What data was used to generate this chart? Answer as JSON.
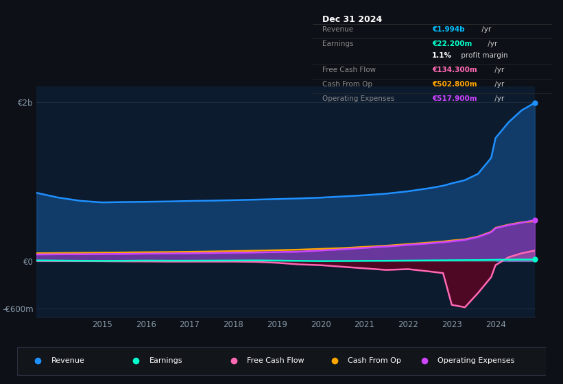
{
  "bg_color": "#0d1117",
  "plot_bg_color": "#0d1b2e",
  "title": "Dec 31 2024",
  "info_box": {
    "Revenue": {
      "label": "Revenue",
      "value": "€1.994b",
      "suffix": " /yr",
      "color": "#00bfff"
    },
    "Earnings": {
      "label": "Earnings",
      "value": "€22.200m",
      "suffix": " /yr",
      "color": "#00ffcc"
    },
    "margin": {
      "label": "",
      "value": "1.1%",
      "suffix": " profit margin",
      "color": "#ffffff"
    },
    "FCF": {
      "label": "Free Cash Flow",
      "value": "€134.300m",
      "suffix": " /yr",
      "color": "#ff69b4"
    },
    "CashFromOp": {
      "label": "Cash From Op",
      "value": "€502.800m",
      "suffix": " /yr",
      "color": "#ffa500"
    },
    "OpEx": {
      "label": "Operating Expenses",
      "value": "€517.900m",
      "suffix": " /yr",
      "color": "#cc44ff"
    }
  },
  "legend": [
    {
      "label": "Revenue",
      "color": "#1e90ff"
    },
    {
      "label": "Earnings",
      "color": "#00ffcc"
    },
    {
      "label": "Free Cash Flow",
      "color": "#ff69b4"
    },
    {
      "label": "Cash From Op",
      "color": "#ffa500"
    },
    {
      "label": "Operating Expenses",
      "color": "#cc44ff"
    }
  ],
  "years": [
    2013.5,
    2014.0,
    2014.5,
    2015.0,
    2015.5,
    2016.0,
    2016.5,
    2017.0,
    2017.5,
    2018.0,
    2018.5,
    2019.0,
    2019.5,
    2020.0,
    2020.5,
    2021.0,
    2021.5,
    2022.0,
    2022.5,
    2022.8,
    2023.0,
    2023.3,
    2023.6,
    2023.9,
    2024.0,
    2024.3,
    2024.6,
    2024.9
  ],
  "revenue": [
    860,
    800,
    760,
    740,
    745,
    748,
    752,
    758,
    762,
    768,
    775,
    782,
    790,
    800,
    815,
    830,
    850,
    880,
    920,
    950,
    980,
    1020,
    1100,
    1300,
    1550,
    1750,
    1900,
    1994
  ],
  "earnings": [
    10,
    8,
    6,
    5,
    6,
    8,
    7,
    7,
    8,
    9,
    10,
    8,
    5,
    2,
    3,
    5,
    6,
    8,
    10,
    11,
    12,
    13,
    14,
    16,
    17,
    19,
    21,
    22
  ],
  "free_cash_flow": [
    5,
    3,
    2,
    0,
    -2,
    -3,
    -5,
    -5,
    -5,
    -5,
    -8,
    -20,
    -40,
    -50,
    -70,
    -90,
    -110,
    -100,
    -130,
    -150,
    -550,
    -580,
    -400,
    -200,
    -50,
    50,
    100,
    134
  ],
  "cash_from_op": [
    100,
    103,
    105,
    108,
    110,
    113,
    115,
    118,
    122,
    127,
    132,
    138,
    145,
    155,
    165,
    180,
    195,
    215,
    235,
    248,
    260,
    275,
    310,
    370,
    420,
    460,
    490,
    503
  ],
  "operating_expenses": [
    85,
    87,
    88,
    90,
    92,
    95,
    97,
    100,
    103,
    107,
    110,
    115,
    120,
    135,
    150,
    168,
    185,
    205,
    225,
    238,
    250,
    268,
    305,
    365,
    415,
    455,
    485,
    518
  ],
  "ylim": [
    -700,
    2200
  ],
  "yticks": [
    -600,
    0,
    2000
  ],
  "ytick_labels": [
    "-€600m",
    "€0",
    "€2b"
  ],
  "x_tick_years": [
    2015,
    2016,
    2017,
    2018,
    2019,
    2020,
    2021,
    2022,
    2023,
    2024
  ],
  "grid_color": "#1e2d3d",
  "line_width": 1.8
}
